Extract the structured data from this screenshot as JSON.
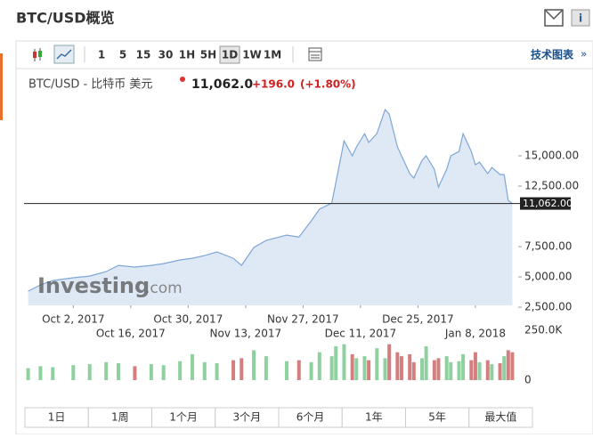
{
  "header": {
    "title": "BTC/USD概览"
  },
  "toolbar": {
    "intervals": [
      "1",
      "5",
      "15",
      "30",
      "1H",
      "5H",
      "1D",
      "1W",
      "1M"
    ],
    "advanced_chart": "技术图表"
  },
  "quote": {
    "name": "BTC/USD - 比特币 美元",
    "price": "11,062.0",
    "change": "+196.0",
    "change_percent": "(+1.80%)"
  },
  "watermark": [
    "Investing",
    ".com"
  ],
  "chart_data": {
    "type": "area",
    "x": [
      "2017-09-21",
      "2017-09-24",
      "2017-09-27",
      "2017-10-02",
      "2017-10-06",
      "2017-10-10",
      "2017-10-13",
      "2017-10-17",
      "2017-10-21",
      "2017-10-24",
      "2017-10-28",
      "2017-10-31",
      "2017-11-03",
      "2017-11-06",
      "2017-11-10",
      "2017-11-12",
      "2017-11-15",
      "2017-11-18",
      "2017-11-23",
      "2017-11-26",
      "2017-11-29",
      "2017-12-01",
      "2017-12-04",
      "2017-12-05",
      "2017-12-07",
      "2017-12-09",
      "2017-12-10",
      "2017-12-12",
      "2017-12-13",
      "2017-12-15",
      "2017-12-17",
      "2017-12-18",
      "2017-12-20",
      "2017-12-21",
      "2017-12-23",
      "2017-12-24",
      "2017-12-26",
      "2017-12-27",
      "2017-12-29",
      "2017-12-30",
      "2018-01-01",
      "2018-01-02",
      "2018-01-04",
      "2018-01-05",
      "2018-01-07",
      "2018-01-08",
      "2018-01-09",
      "2018-01-11",
      "2018-01-12",
      "2018-01-14",
      "2018-01-15",
      "2018-01-16",
      "2018-01-17"
    ],
    "values": [
      3820,
      4340,
      4700,
      4930,
      5070,
      5440,
      5950,
      5810,
      5950,
      6100,
      6400,
      6540,
      6760,
      7060,
      6540,
      5950,
      7430,
      8010,
      8450,
      8300,
      9630,
      10590,
      11100,
      12790,
      16240,
      15000,
      15730,
      16830,
      16100,
      16830,
      18820,
      18450,
      15730,
      15000,
      13530,
      13160,
      14630,
      15000,
      13890,
      12420,
      13890,
      15000,
      15360,
      16830,
      15360,
      14260,
      14480,
      13530,
      14040,
      13450,
      13450,
      11320,
      11062
    ],
    "color": "#7ea6d6",
    "fill_color": "#dfe9f5",
    "xlim": [
      "2017-09-20",
      "2018-01-18"
    ],
    "xticks": [
      {
        "value": "2017-10-02",
        "label": "Oct 2, 2017"
      },
      {
        "value": "2017-10-16",
        "label": "Oct 16, 2017"
      },
      {
        "value": "2017-10-30",
        "label": "Oct 30, 2017"
      },
      {
        "value": "2017-11-13",
        "label": "Nov 13, 2017"
      },
      {
        "value": "2017-11-27",
        "label": "Nov 27, 2017"
      },
      {
        "value": "2017-12-11",
        "label": "Dec 11, 2017"
      },
      {
        "value": "2017-12-25",
        "label": "Dec 25, 2017"
      },
      {
        "value": "2018-01-08",
        "label": "Jan 8, 2018"
      }
    ],
    "ylim": [
      2650,
      19560
    ],
    "yticks": [
      {
        "value": 2500,
        "label": "2,500.00"
      },
      {
        "value": 5000,
        "label": "5,000.00"
      },
      {
        "value": 7500,
        "label": "7,500.00"
      },
      {
        "value": 12500,
        "label": "12,500.00"
      },
      {
        "value": 15000,
        "label": "15,000.00"
      }
    ],
    "last": {
      "value": 11062,
      "label": "11,062.00"
    },
    "last_color": "#222222",
    "volume": {
      "values": [
        60000,
        70000,
        65000,
        75000,
        80000,
        90000,
        85000,
        70000,
        80000,
        75000,
        95000,
        130000,
        90000,
        85000,
        100000,
        110000,
        150000,
        120000,
        95000,
        100000,
        90000,
        140000,
        120000,
        170000,
        180000,
        130000,
        110000,
        120000,
        100000,
        160000,
        110000,
        180000,
        140000,
        120000,
        130000,
        90000,
        110000,
        170000,
        100000,
        110000,
        120000,
        90000,
        95000,
        130000,
        100000,
        140000,
        90000,
        100000,
        80000,
        85000,
        120000,
        150000,
        140000
      ],
      "up_color": "#8fd19e",
      "down_color": "#d47f7f",
      "ylim": [
        0,
        250000
      ],
      "yticks": [
        0,
        {
          "value": 250000,
          "label": "250.0K"
        }
      ]
    }
  },
  "ranges": [
    "1日",
    "1周",
    "1个月",
    "3个月",
    "6个月",
    "1年",
    "5年",
    "最大值"
  ]
}
